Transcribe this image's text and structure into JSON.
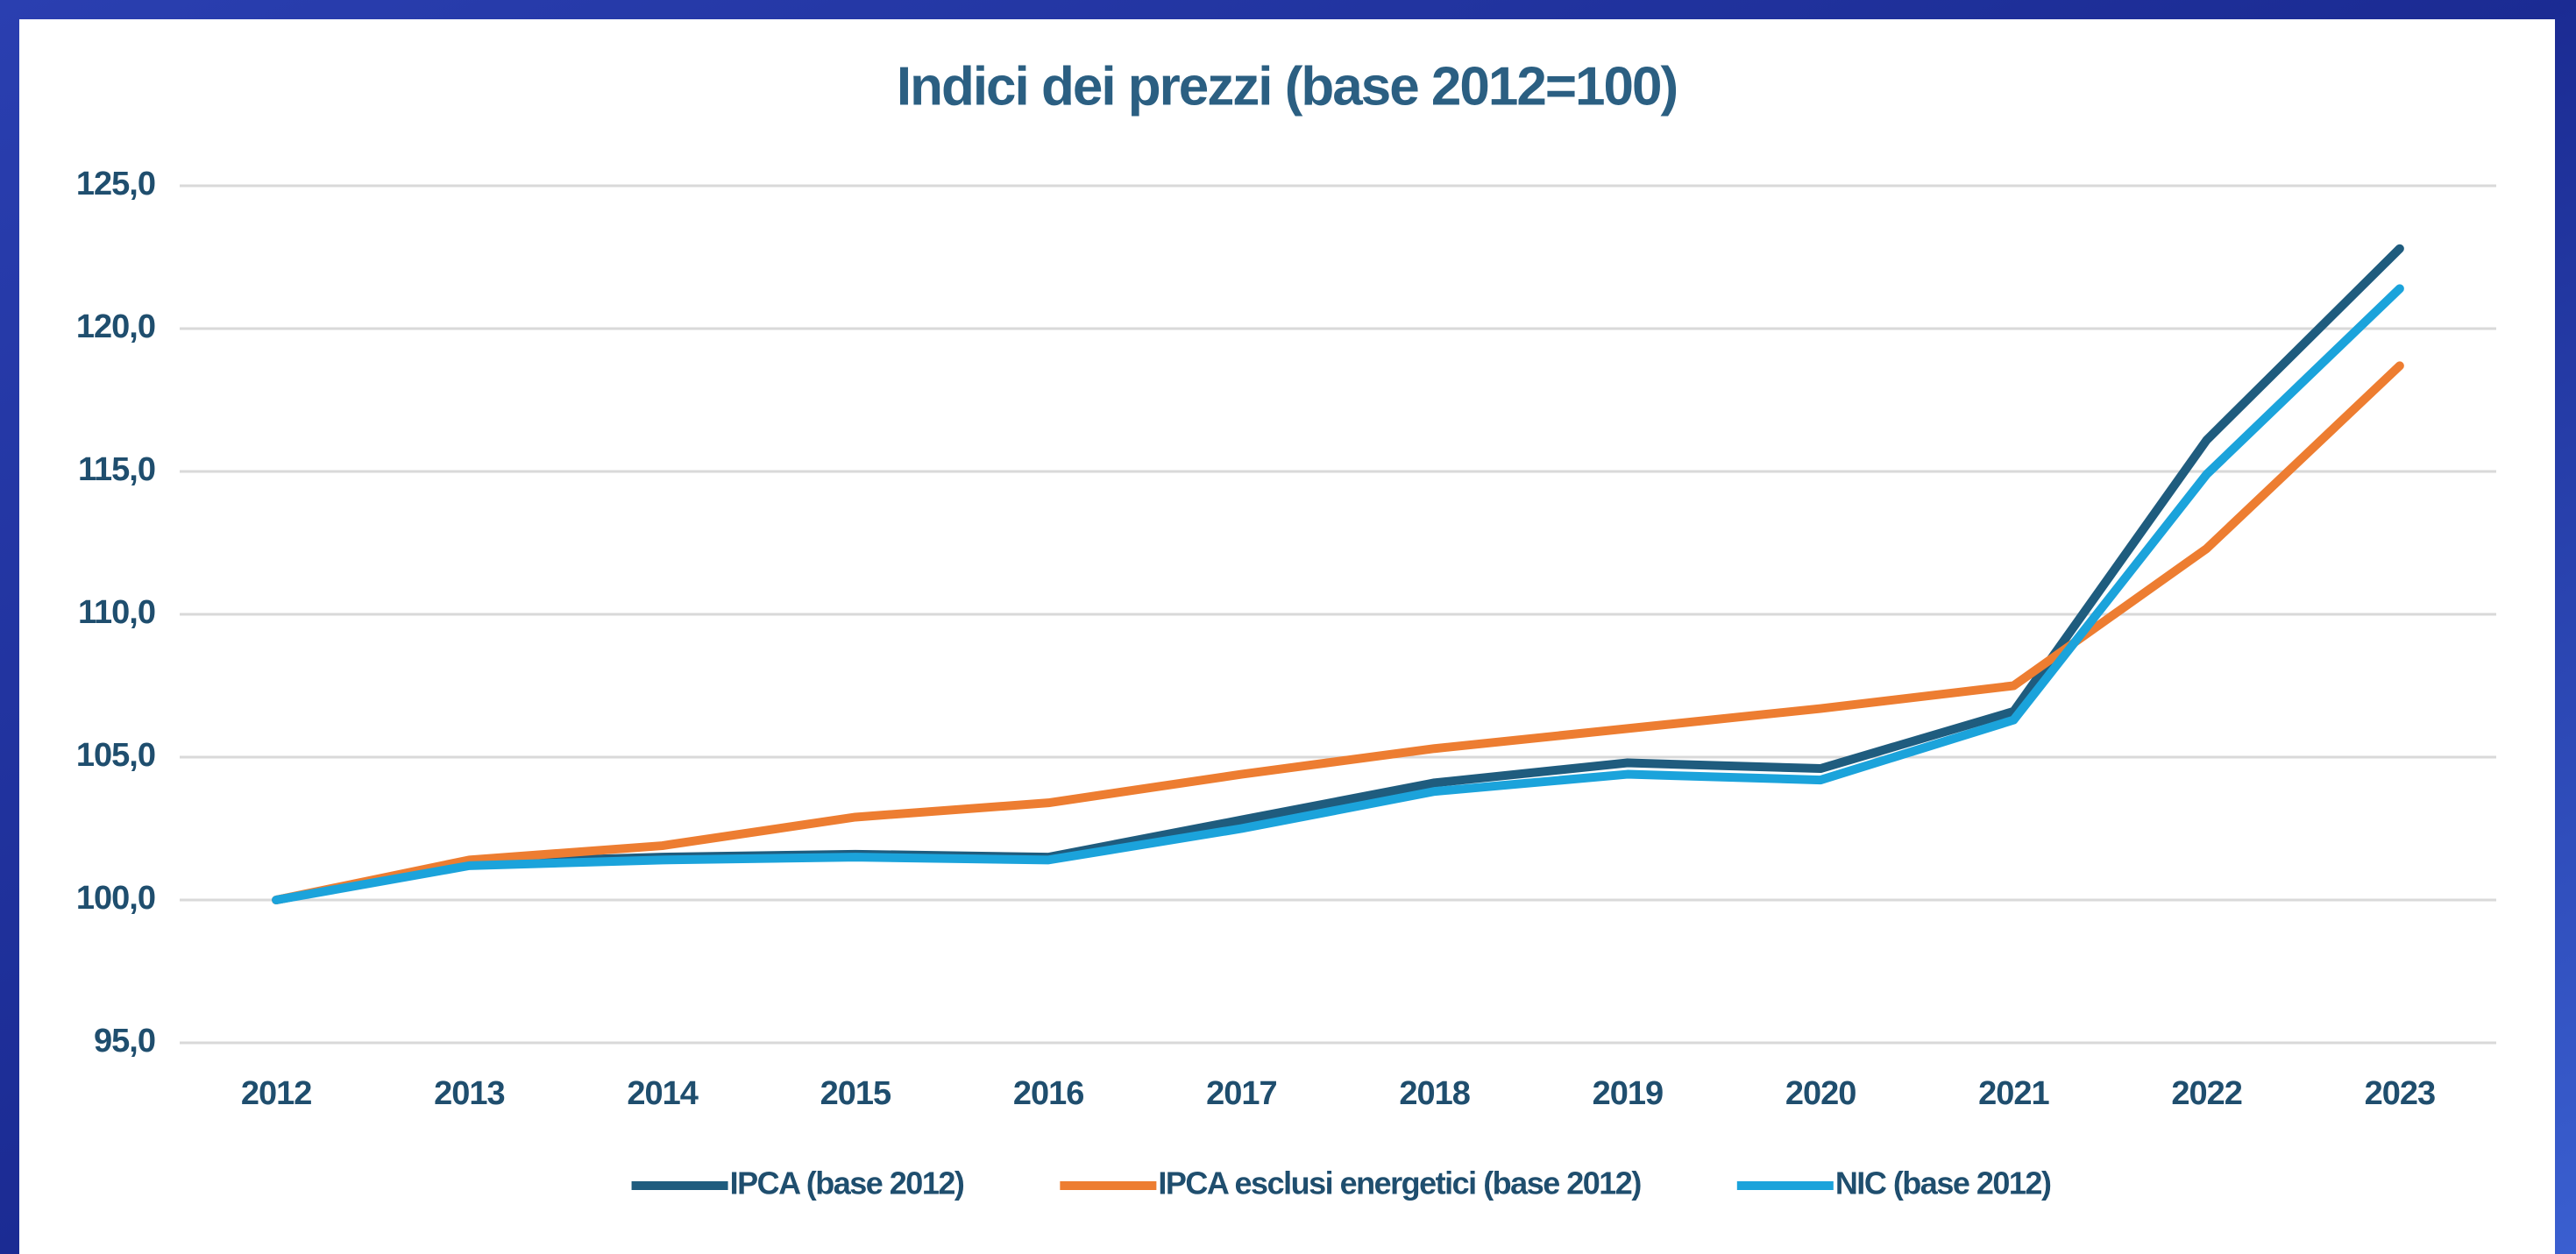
{
  "chart_data": {
    "type": "line",
    "title": "Indici dei prezzi (base 2012=100)",
    "categories": [
      "2012",
      "2013",
      "2014",
      "2015",
      "2016",
      "2017",
      "2018",
      "2019",
      "2020",
      "2021",
      "2022",
      "2023"
    ],
    "series": [
      {
        "name": "IPCA (base 2012)",
        "color": "#1f5c7e",
        "values": [
          100.0,
          101.3,
          101.5,
          101.6,
          101.5,
          102.8,
          104.1,
          104.8,
          104.6,
          106.6,
          116.1,
          122.8
        ]
      },
      {
        "name": "IPCA esclusi energetici (base 2012)",
        "color": "#ed7d31",
        "values": [
          100.0,
          101.4,
          101.9,
          102.9,
          103.4,
          104.4,
          105.3,
          106.0,
          106.7,
          107.5,
          112.3,
          118.7
        ]
      },
      {
        "name": "NIC (base 2012)",
        "color": "#1ba3db",
        "values": [
          100.0,
          101.2,
          101.4,
          101.5,
          101.4,
          102.5,
          103.8,
          104.4,
          104.2,
          106.3,
          114.9,
          121.4
        ]
      }
    ],
    "ylim": [
      95,
      125
    ],
    "yticks": [
      {
        "value": 95,
        "label": "95,0"
      },
      {
        "value": 100,
        "label": "100,0"
      },
      {
        "value": 105,
        "label": "105,0"
      },
      {
        "value": 110,
        "label": "110,0"
      },
      {
        "value": 115,
        "label": "115,0"
      },
      {
        "value": 120,
        "label": "120,0"
      },
      {
        "value": 125,
        "label": "125,0"
      }
    ],
    "grid": true,
    "legend": "bottom"
  }
}
